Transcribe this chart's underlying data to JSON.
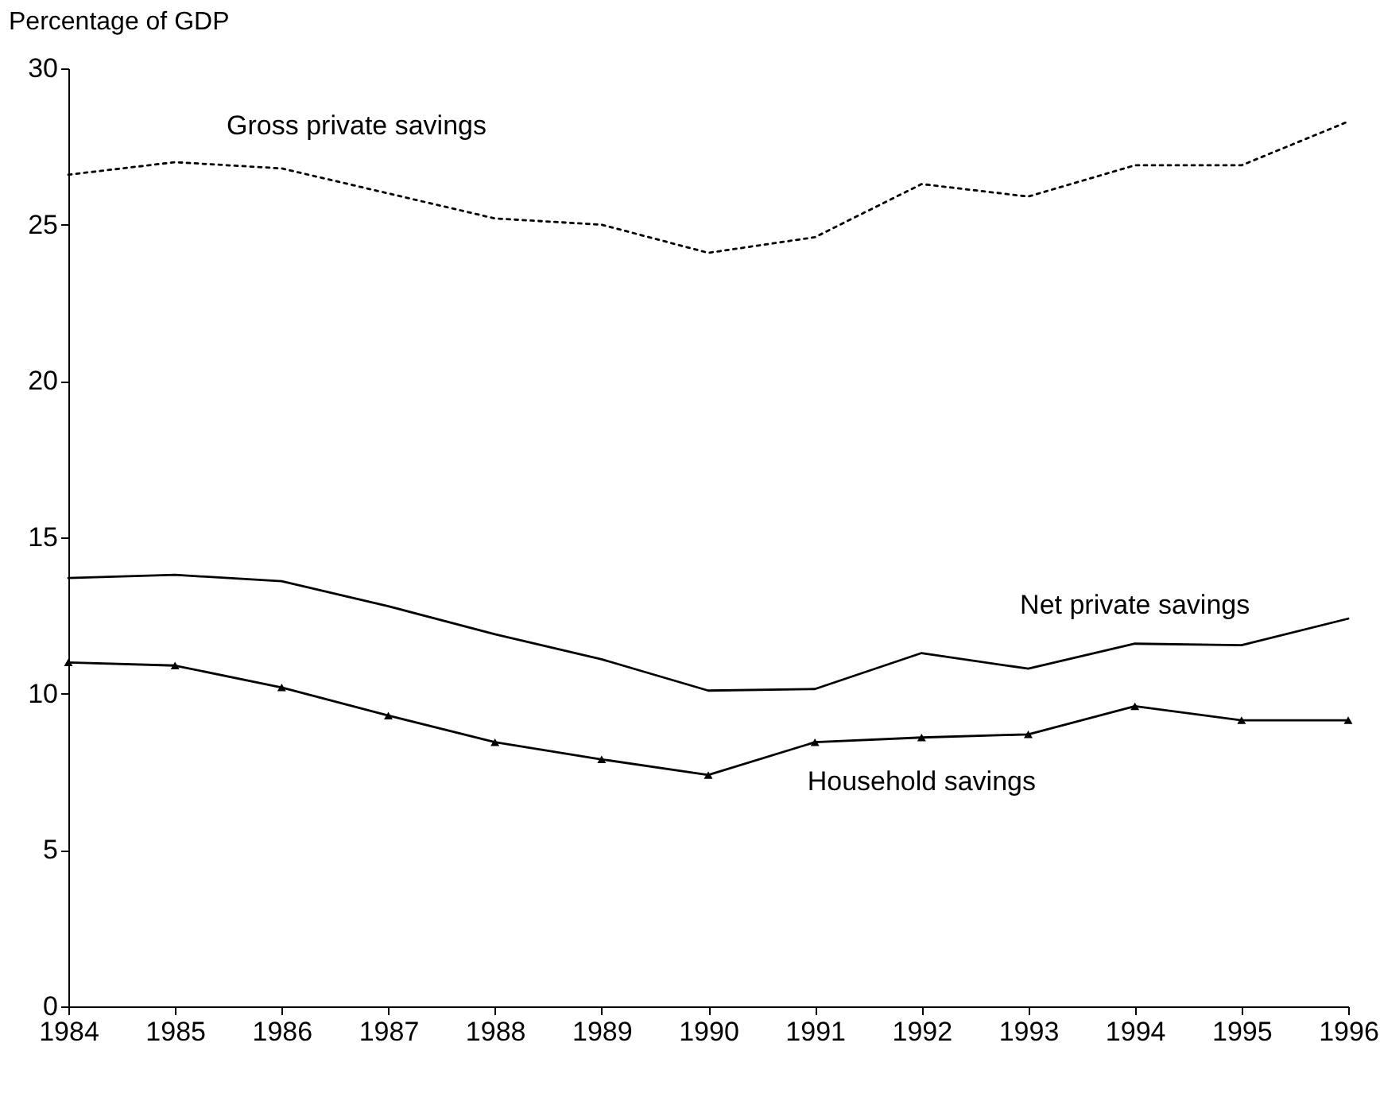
{
  "chart_data": {
    "type": "line",
    "ylabel": "Percentage of GDP",
    "x": [
      1984,
      1985,
      1986,
      1987,
      1988,
      1989,
      1990,
      1991,
      1992,
      1993,
      1994,
      1995,
      1996
    ],
    "xlim": [
      1984,
      1996
    ],
    "xticks": [
      1984,
      1985,
      1986,
      1987,
      1988,
      1989,
      1990,
      1991,
      1992,
      1993,
      1994,
      1995,
      1996
    ],
    "ylim": [
      0,
      30
    ],
    "yticks": [
      0,
      5,
      10,
      15,
      20,
      25,
      30
    ],
    "grid": false,
    "legend": false,
    "series": [
      {
        "name": "Gross private savings",
        "color": "#000000",
        "line_style": "dotted",
        "marker": "none",
        "values": [
          26.6,
          27.0,
          26.8,
          26.0,
          25.2,
          25.0,
          24.1,
          24.6,
          26.3,
          25.9,
          26.9,
          26.9,
          28.3
        ]
      },
      {
        "name": "Net private savings",
        "color": "#000000",
        "line_style": "solid",
        "marker": "none",
        "values": [
          13.7,
          13.8,
          13.6,
          12.8,
          11.9,
          11.1,
          10.1,
          10.15,
          11.3,
          10.8,
          11.6,
          11.55,
          12.4
        ]
      },
      {
        "name": "Household savings",
        "color": "#000000",
        "line_style": "solid",
        "marker": "triangle",
        "values": [
          11.0,
          10.9,
          10.2,
          9.3,
          8.45,
          7.9,
          7.4,
          8.45,
          8.6,
          8.7,
          9.6,
          9.15,
          9.15
        ]
      }
    ]
  }
}
